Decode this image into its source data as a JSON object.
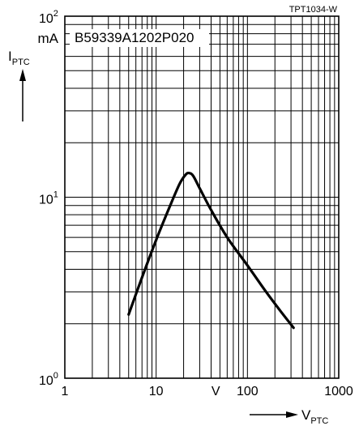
{
  "chart_data": {
    "type": "line",
    "title": "B59339A1202P020",
    "figure_id": "TPT1034-W",
    "xlabel": {
      "symbol": "V",
      "subscript": "PTC"
    },
    "ylabel": {
      "symbol": "I",
      "subscript": "PTC"
    },
    "x_unit": "V",
    "y_unit": "mA",
    "xscale": "log",
    "yscale": "log",
    "xlim": [
      1,
      1000
    ],
    "ylim": [
      1,
      100
    ],
    "grid": true,
    "x_ticks": [
      {
        "value": 1,
        "label": "1"
      },
      {
        "value": 10,
        "label": "10"
      },
      {
        "value": 100,
        "label": "100"
      },
      {
        "value": 1000,
        "label": "1000"
      }
    ],
    "y_ticks": [
      {
        "value": 1,
        "base": "10",
        "exp": "0"
      },
      {
        "value": 10,
        "base": "10",
        "exp": "1"
      },
      {
        "value": 100,
        "base": "10",
        "exp": "2"
      }
    ],
    "series": [
      {
        "values": [
          [
            5,
            2.25
          ],
          [
            7,
            3.6
          ],
          [
            10,
            5.8
          ],
          [
            14,
            8.8
          ],
          [
            18,
            11.8
          ],
          [
            21,
            13.3
          ],
          [
            23,
            13.6
          ],
          [
            25.5,
            13.1
          ],
          [
            30,
            11.2
          ],
          [
            40,
            8.5
          ],
          [
            60,
            6.0
          ],
          [
            100,
            4.2
          ],
          [
            160,
            3.0
          ],
          [
            230,
            2.35
          ],
          [
            320,
            1.9
          ]
        ]
      }
    ]
  }
}
